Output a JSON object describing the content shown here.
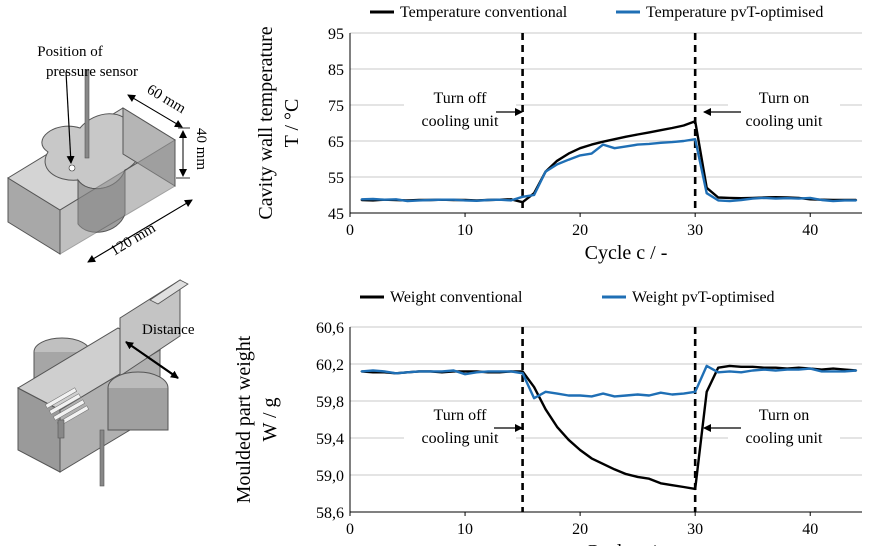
{
  "parts": {
    "top": {
      "label_sensor": "Position of",
      "label_sensor2": "pressure sensor",
      "dim_a": "60 mm",
      "dim_b": "40 mm",
      "dim_c": "120 mm"
    },
    "bottom": {
      "label_distance": "Distance"
    }
  },
  "chart_data": [
    {
      "type": "line",
      "ylabel": "Cavity wall temperature",
      "ylabel2": "T / °C",
      "xlabel": "Cycle c / -",
      "xlim": [
        0,
        44.5
      ],
      "ylim": [
        45,
        95
      ],
      "xticks": [
        0,
        10,
        20,
        30,
        40
      ],
      "yticks": [
        45,
        55,
        65,
        75,
        85,
        95
      ],
      "ytick_labels": [
        "45",
        "55",
        "65",
        "75",
        "85",
        "95"
      ],
      "grid": true,
      "legend_position": "top",
      "vlines": [
        15,
        30
      ],
      "annotations": [
        {
          "line1": "Turn off",
          "line2": "cooling unit"
        },
        {
          "line1": "Turn on",
          "line2": "cooling unit"
        }
      ],
      "x": [
        1,
        2,
        3,
        4,
        5,
        6,
        7,
        8,
        9,
        10,
        11,
        12,
        13,
        14,
        15,
        16,
        17,
        18,
        19,
        20,
        21,
        22,
        23,
        24,
        25,
        26,
        27,
        28,
        29,
        30,
        31,
        32,
        33,
        34,
        35,
        36,
        37,
        38,
        39,
        40,
        41,
        42,
        43,
        44
      ],
      "series": [
        {
          "name": "Temperature conventional",
          "color": "#000000",
          "values": [
            48.6,
            48.5,
            48.7,
            48.6,
            48.5,
            48.6,
            48.6,
            48.7,
            48.6,
            48.6,
            48.5,
            48.6,
            48.7,
            48.8,
            48.0,
            50.5,
            56.5,
            59.5,
            61.5,
            63.0,
            64.0,
            64.8,
            65.5,
            66.2,
            66.8,
            67.4,
            68.0,
            68.6,
            69.3,
            70.5,
            52.0,
            49.3,
            49.2,
            49.1,
            49.2,
            49.3,
            49.4,
            49.3,
            49.2,
            48.8,
            48.7,
            48.6,
            48.6,
            48.6
          ]
        },
        {
          "name": "Temperature pvT-optimised",
          "color": "#1f6fb5",
          "values": [
            48.8,
            48.9,
            48.7,
            48.8,
            48.3,
            48.5,
            48.6,
            48.7,
            48.7,
            48.5,
            48.4,
            48.6,
            48.7,
            48.5,
            49.5,
            50.0,
            56.5,
            58.5,
            59.8,
            61.0,
            61.5,
            64.0,
            63.0,
            63.5,
            64.0,
            64.2,
            64.5,
            64.7,
            65.0,
            65.5,
            50.5,
            48.5,
            48.3,
            48.6,
            49.0,
            49.2,
            49.0,
            49.1,
            49.0,
            49.2,
            48.6,
            48.3,
            48.5,
            48.5
          ]
        }
      ]
    },
    {
      "type": "line",
      "ylabel": "Moulded part weight",
      "ylabel2": "W / g",
      "xlabel": "Cycle c / -",
      "xlim": [
        0,
        44.5
      ],
      "ylim": [
        58.6,
        60.6
      ],
      "xticks": [
        0,
        10,
        20,
        30,
        40
      ],
      "yticks": [
        58.6,
        59.0,
        59.4,
        59.8,
        60.2,
        60.6
      ],
      "ytick_labels": [
        "58,6",
        "59,0",
        "59,4",
        "59,8",
        "60,2",
        "60,6"
      ],
      "grid": true,
      "legend_position": "top",
      "vlines": [
        15,
        30
      ],
      "annotations": [
        {
          "line1": "Turn off",
          "line2": "cooling unit"
        },
        {
          "line1": "Turn on",
          "line2": "cooling unit"
        }
      ],
      "x": [
        1,
        2,
        3,
        4,
        5,
        6,
        7,
        8,
        9,
        10,
        11,
        12,
        13,
        14,
        15,
        16,
        17,
        18,
        19,
        20,
        21,
        22,
        23,
        24,
        25,
        26,
        27,
        28,
        29,
        30,
        31,
        32,
        33,
        34,
        35,
        36,
        37,
        38,
        39,
        40,
        41,
        42,
        43,
        44
      ],
      "series": [
        {
          "name": "Weight conventional",
          "color": "#000000",
          "values": [
            60.12,
            60.11,
            60.11,
            60.1,
            60.11,
            60.12,
            60.12,
            60.11,
            60.12,
            60.12,
            60.12,
            60.11,
            60.11,
            60.12,
            60.12,
            59.95,
            59.71,
            59.52,
            59.38,
            59.27,
            59.18,
            59.12,
            59.06,
            59.01,
            58.98,
            58.96,
            58.91,
            58.89,
            58.87,
            58.85,
            59.9,
            60.16,
            60.18,
            60.17,
            60.17,
            60.16,
            60.16,
            60.15,
            60.16,
            60.15,
            60.14,
            60.15,
            60.14,
            60.13
          ]
        },
        {
          "name": "Weight pvT-optimised",
          "color": "#1f6fb5",
          "values": [
            60.12,
            60.13,
            60.12,
            60.1,
            60.11,
            60.12,
            60.12,
            60.12,
            60.13,
            60.09,
            60.11,
            60.12,
            60.12,
            60.12,
            60.1,
            59.83,
            59.9,
            59.88,
            59.86,
            59.86,
            59.85,
            59.88,
            59.85,
            59.86,
            59.87,
            59.86,
            59.89,
            59.87,
            59.88,
            59.9,
            60.18,
            60.11,
            60.12,
            60.11,
            60.13,
            60.14,
            60.13,
            60.14,
            60.14,
            60.15,
            60.12,
            60.12,
            60.12,
            60.13
          ]
        }
      ]
    }
  ]
}
